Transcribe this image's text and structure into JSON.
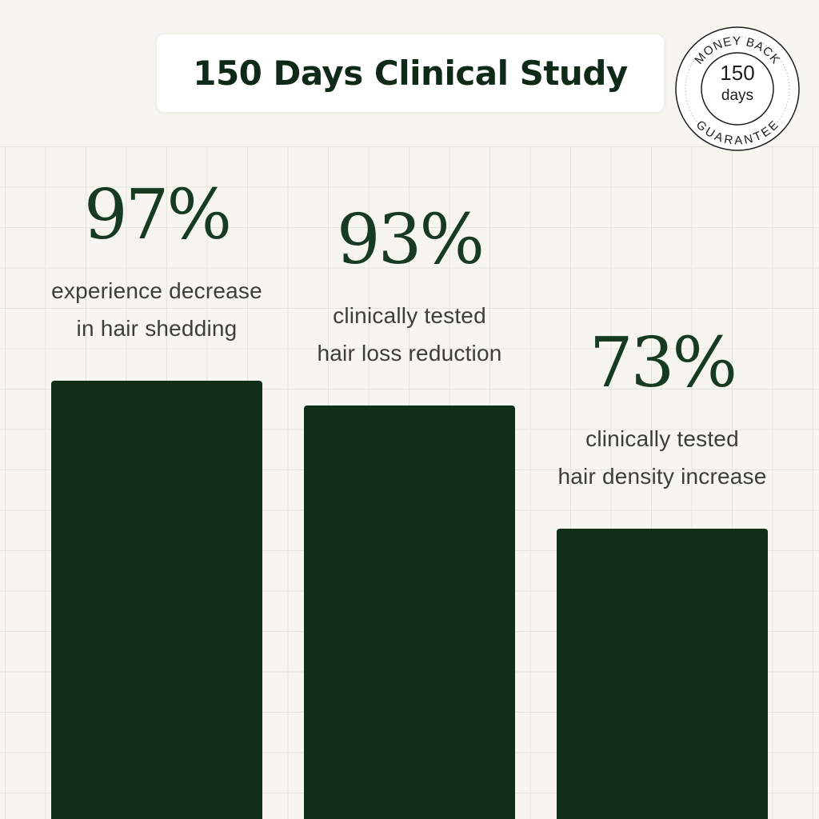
{
  "title": "150 Days Clinical Study",
  "badge": {
    "top_text": "MONEY BACK",
    "number": "150",
    "unit": "days",
    "bottom_text": "GUARANTEE"
  },
  "colors": {
    "bar": "#0f2e17",
    "value_text": "#163a22",
    "background": "#f6f5ef"
  },
  "chart_data": {
    "type": "bar",
    "categories": [
      "experience decrease in hair shedding",
      "clinically tested hair loss reduction",
      "clinically tested hair density increase"
    ],
    "values": [
      97,
      93,
      73
    ],
    "value_labels": [
      "97%",
      "93%",
      "73%"
    ],
    "descriptions": [
      [
        "experience decrease",
        "in hair shedding"
      ],
      [
        "clinically tested",
        "hair loss reduction"
      ],
      [
        "clinically tested",
        "hair density increase"
      ]
    ],
    "grid": true
  }
}
